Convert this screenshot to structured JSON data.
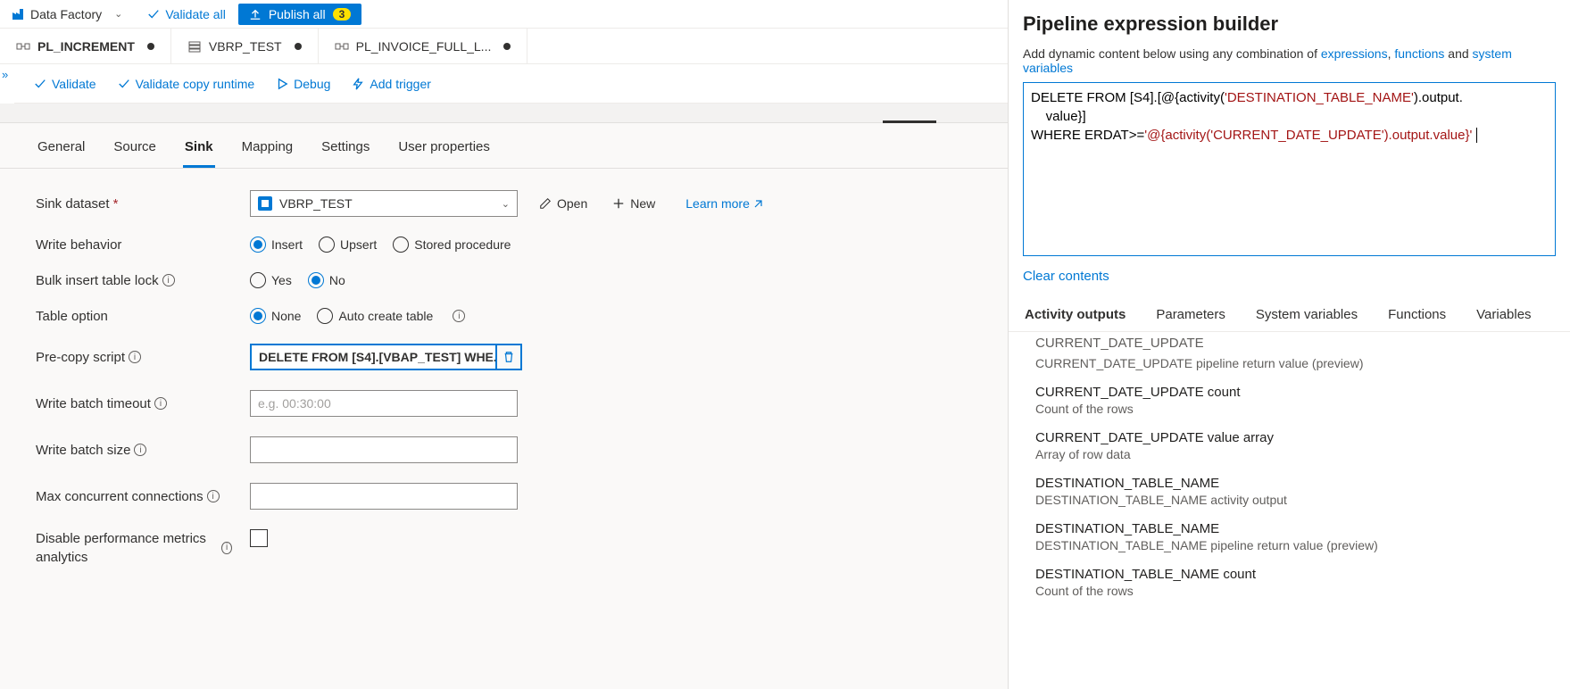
{
  "colors": {
    "primary": "#0078d4",
    "text": "#323130",
    "muted": "#605e5c",
    "border": "#8a8886",
    "bg": "#f3f2f1",
    "panel_bg": "#faf9f8",
    "badge_bg": "#fce100",
    "required": "#a4262c",
    "code_kw": "#0000ff",
    "code_str": "#a31515"
  },
  "topbar": {
    "brand": "Data Factory",
    "validate_all": "Validate all",
    "publish_all": "Publish all",
    "publish_badge": "3"
  },
  "tabs": [
    {
      "label": "PL_INCREMENT",
      "icon": "pipeline",
      "dirty": true,
      "active": true
    },
    {
      "label": "VBRP_TEST",
      "icon": "dataset",
      "dirty": true,
      "active": false
    },
    {
      "label": "PL_INVOICE_FULL_L...",
      "icon": "pipeline",
      "dirty": true,
      "active": false
    }
  ],
  "actions": {
    "validate": "Validate",
    "validate_copy": "Validate copy runtime",
    "debug": "Debug",
    "add_trigger": "Add trigger"
  },
  "prop_tabs": [
    "General",
    "Source",
    "Sink",
    "Mapping",
    "Settings",
    "User properties"
  ],
  "prop_tab_active": "Sink",
  "sink": {
    "dataset_label": "Sink dataset",
    "dataset_value": "VBRP_TEST",
    "open": "Open",
    "new": "New",
    "learn_more": "Learn more",
    "write_behavior_label": "Write behavior",
    "write_behavior_options": [
      "Insert",
      "Upsert",
      "Stored procedure"
    ],
    "write_behavior_value": "Insert",
    "bulk_lock_label": "Bulk insert table lock",
    "bulk_lock_options": [
      "Yes",
      "No"
    ],
    "bulk_lock_value": "No",
    "table_option_label": "Table option",
    "table_option_options": [
      "None",
      "Auto create table"
    ],
    "table_option_value": "None",
    "precopy_label": "Pre-copy script",
    "precopy_value": "DELETE FROM [S4].[VBAP_TEST] WHE...",
    "batch_timeout_label": "Write batch timeout",
    "batch_timeout_placeholder": "e.g. 00:30:00",
    "batch_size_label": "Write batch size",
    "max_conn_label": "Max concurrent connections",
    "disable_metrics_label": "Disable performance metrics analytics"
  },
  "expression": {
    "title": "Pipeline expression builder",
    "desc_prefix": "Add dynamic content below using any combination of ",
    "desc_links": [
      "expressions",
      "functions",
      "system variables"
    ],
    "desc_and": " and ",
    "code_lines": [
      {
        "parts": [
          {
            "t": "DELETE FROM ",
            "c": "plain"
          },
          {
            "t": "[S4].[",
            "c": "plain"
          },
          {
            "t": "@{activity(",
            "c": "plain"
          },
          {
            "t": "'DESTINATION_TABLE_NAME'",
            "c": "str"
          },
          {
            "t": ").output.",
            "c": "plain"
          }
        ]
      },
      {
        "parts": [
          {
            "t": "    value}]",
            "c": "plain"
          }
        ]
      },
      {
        "parts": [
          {
            "t": "WHERE ERDAT>=",
            "c": "plain"
          },
          {
            "t": "'@{activity('",
            "c": "str"
          },
          {
            "t": "CURRENT_DATE_UPDATE",
            "c": "str2"
          },
          {
            "t": "').output.value}'",
            "c": "str3"
          }
        ]
      }
    ],
    "clear": "Clear contents",
    "tabs": [
      "Activity outputs",
      "Parameters",
      "System variables",
      "Functions",
      "Variables"
    ],
    "tab_active": "Activity outputs",
    "outputs": [
      {
        "title": "CURRENT_DATE_UPDATE",
        "desc": "CURRENT_DATE_UPDATE pipeline return value (preview)",
        "cut": true
      },
      {
        "title": "CURRENT_DATE_UPDATE count",
        "desc": "Count of the rows"
      },
      {
        "title": "CURRENT_DATE_UPDATE value array",
        "desc": "Array of row data"
      },
      {
        "title": "DESTINATION_TABLE_NAME",
        "desc": "DESTINATION_TABLE_NAME activity output"
      },
      {
        "title": "DESTINATION_TABLE_NAME",
        "desc": "DESTINATION_TABLE_NAME pipeline return value (preview)"
      },
      {
        "title": "DESTINATION_TABLE_NAME count",
        "desc": "Count of the rows"
      }
    ]
  }
}
